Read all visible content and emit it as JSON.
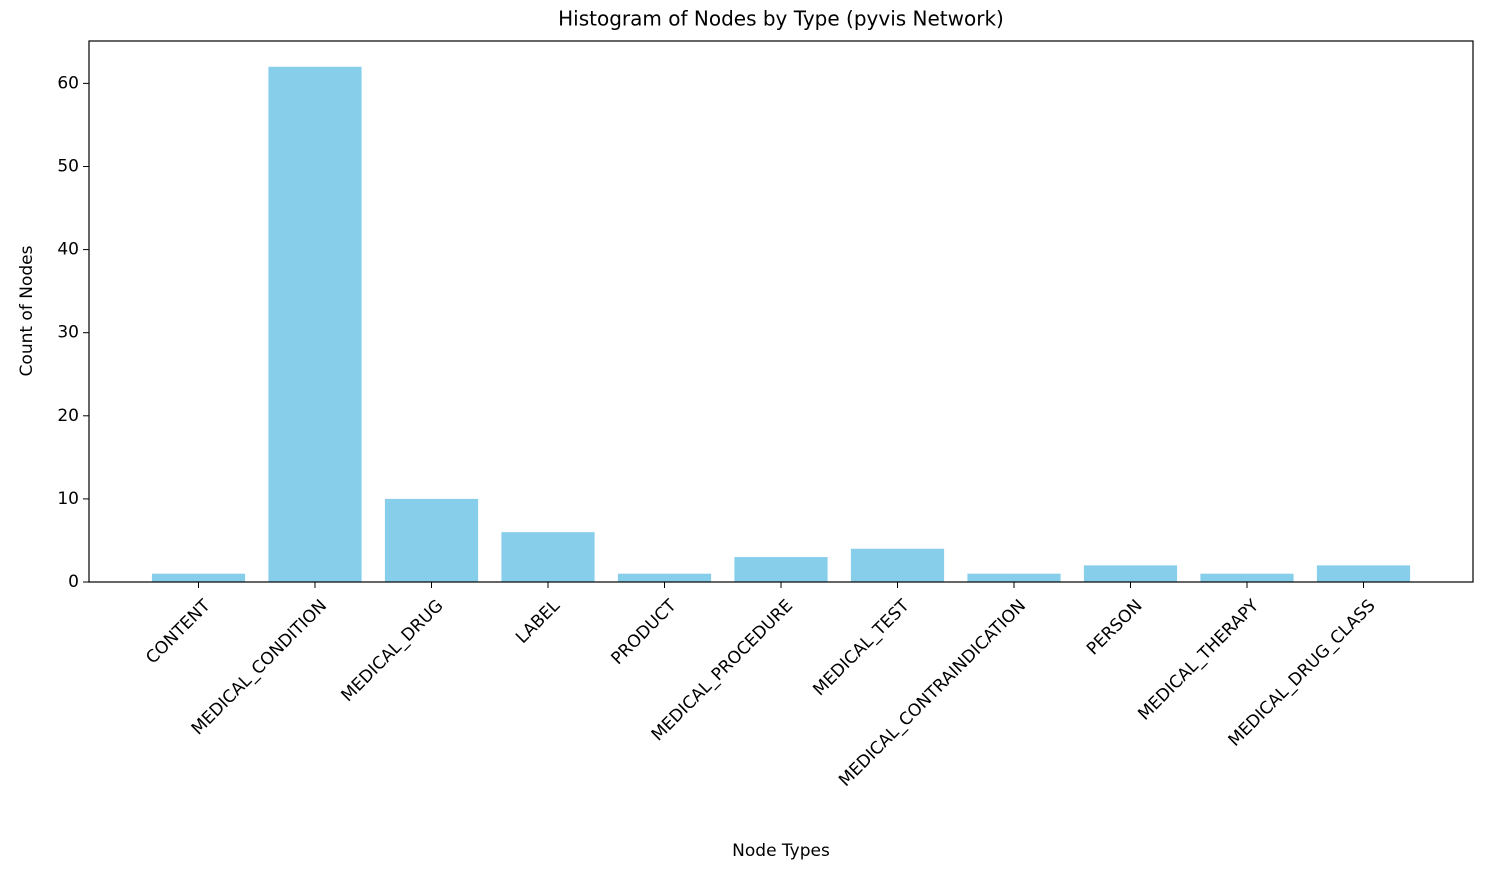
{
  "chart_data": {
    "type": "bar",
    "title": "Histogram of Nodes by Type (pyvis Network)",
    "x_label": "Node Types",
    "y_label": "Count of Nodes",
    "categories": [
      "CONTENT",
      "MEDICAL_CONDITION",
      "MEDICAL_DRUG",
      "LABEL",
      "PRODUCT",
      "MEDICAL_PROCEDURE",
      "MEDICAL_TEST",
      "MEDICAL_CONTRAINDICATION",
      "PERSON",
      "MEDICAL_THERAPY",
      "MEDICAL_DRUG_CLASS"
    ],
    "values": [
      1,
      62,
      10,
      6,
      1,
      3,
      4,
      1,
      2,
      1,
      2
    ],
    "color": "#87ceeb",
    "ylim": [
      0,
      65.1
    ],
    "yticks": [
      0,
      10,
      20,
      30,
      40,
      50,
      60
    ],
    "grid": false
  }
}
